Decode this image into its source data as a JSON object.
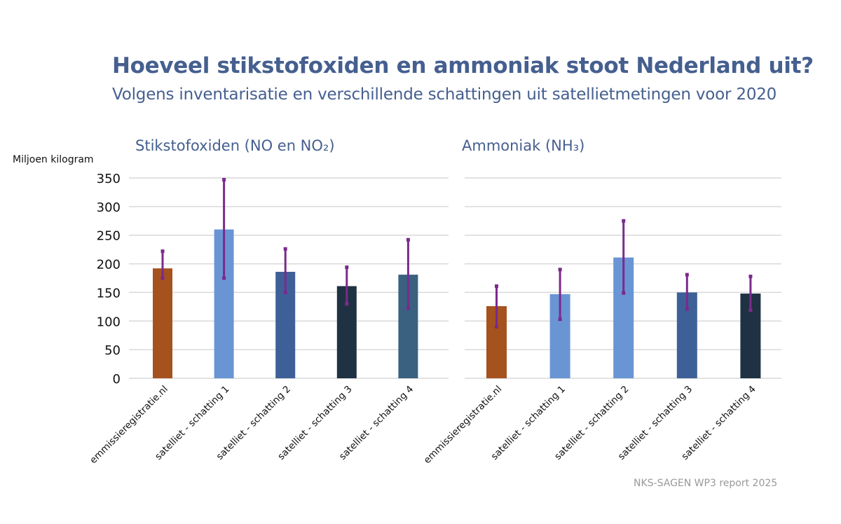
{
  "title": "Hoeveel stikstofoxiden en ammoniak stoot Nederland uit?",
  "subtitle": "Volgens inventarisatie en verschillende schattingen uit satellietmetingen voor 2020",
  "source": "NKS-SAGEN WP3 report 2025",
  "colors": {
    "title": "#455f8f",
    "error_bar": "#7b2a8c",
    "gridline": "#d9d9d9"
  },
  "chart_data": [
    {
      "type": "bar",
      "title": "Stikstofoxiden (NO en NO₂)",
      "ylabel": "Miljoen kilogram",
      "xlabel": "",
      "ylim": [
        0,
        350
      ],
      "yticks": [
        0,
        50,
        100,
        150,
        200,
        250,
        300,
        350
      ],
      "grid": true,
      "categories": [
        "emmissieregistratie.nl",
        "satelliet - schatting 1",
        "satelliet - schatting 2",
        "satelliet - schatting 3",
        "satelliet - schatting 4"
      ],
      "values": [
        192,
        260,
        186,
        161,
        181
      ],
      "error_low": [
        175,
        175,
        150,
        130,
        122
      ],
      "error_high": [
        222,
        347,
        226,
        194,
        242
      ],
      "bar_colors": [
        "#a5521f",
        "#6a95d4",
        "#3e6098",
        "#1f3243",
        "#3a6180"
      ]
    },
    {
      "type": "bar",
      "title": "Ammoniak (NH₃)",
      "ylabel": "",
      "xlabel": "",
      "ylim": [
        0,
        350
      ],
      "yticks": [
        0,
        50,
        100,
        150,
        200,
        250,
        300,
        350
      ],
      "grid": true,
      "categories": [
        "emmissieregistratie.nl",
        "satelliet - schatting 1",
        "satelliet - schatting 2",
        "satelliet - schatting 3",
        "satelliet - schatting 4"
      ],
      "values": [
        126,
        147,
        211,
        150,
        148
      ],
      "error_low": [
        90,
        103,
        149,
        121,
        119
      ],
      "error_high": [
        161,
        190,
        275,
        181,
        178
      ],
      "bar_colors": [
        "#a5521f",
        "#6a95d4",
        "#6a95d4",
        "#3e6098",
        "#1f3243"
      ]
    }
  ]
}
